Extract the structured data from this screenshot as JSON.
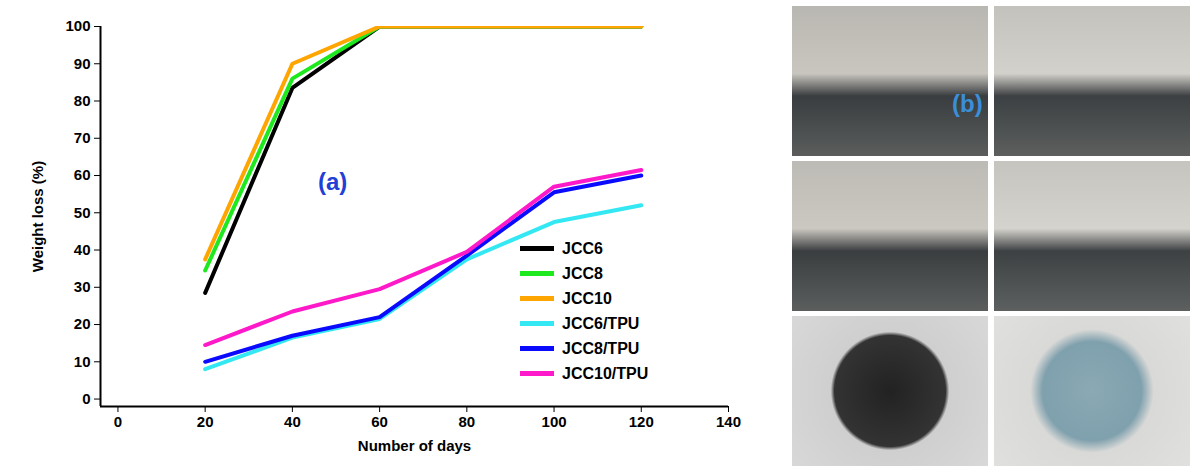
{
  "chart_data": {
    "type": "line",
    "x_label": "Number of days",
    "y_label": "Weight loss (%)",
    "x": [
      20,
      40,
      60,
      80,
      100,
      120
    ],
    "series": [
      {
        "name": "JCC6",
        "color": "#000000",
        "values": [
          28.5,
          83.5,
          100,
          100,
          100,
          100
        ]
      },
      {
        "name": "JCC8",
        "color": "#1ee81e",
        "values": [
          34.5,
          86,
          100,
          100,
          100,
          100
        ]
      },
      {
        "name": "JCC10",
        "color": "#ffa500",
        "values": [
          37.5,
          90,
          100,
          100,
          100,
          100
        ]
      },
      {
        "name": "JCC6/TPU",
        "color": "#33e8f2",
        "values": [
          8,
          16.5,
          21.5,
          37.5,
          47.5,
          52
        ]
      },
      {
        "name": "JCC8/TPU",
        "color": "#0a0aff",
        "values": [
          10,
          17,
          22,
          38.5,
          55.5,
          60
        ]
      },
      {
        "name": "JCC10/TPU",
        "color": "#ff19c8",
        "values": [
          14.5,
          23.5,
          29.5,
          39.5,
          57,
          61.5
        ]
      }
    ],
    "xlim": [
      -4,
      140
    ],
    "ylim": [
      -2,
      100
    ],
    "xticks": [
      0,
      20,
      40,
      60,
      80,
      100,
      120,
      140
    ],
    "yticks": [
      0,
      10,
      20,
      30,
      40,
      50,
      60,
      70,
      80,
      90,
      100
    ],
    "grid": false,
    "legend": "lower right",
    "annotations": [
      "(a)",
      "(b)"
    ]
  }
}
